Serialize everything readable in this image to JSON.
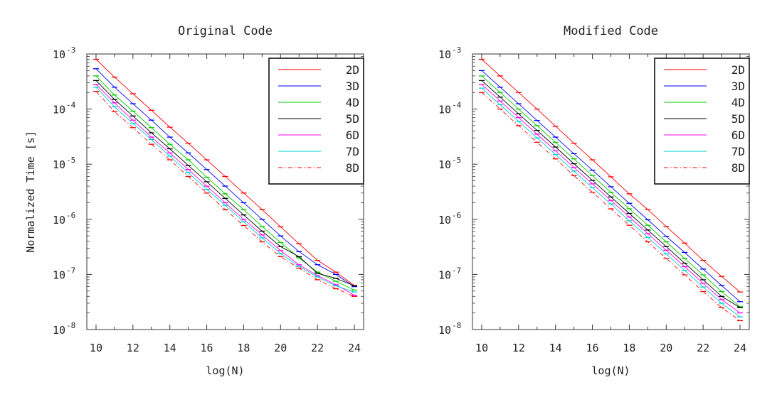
{
  "chart_data": [
    {
      "type": "line",
      "title": "Original Code",
      "xlabel": "log(N)",
      "ylabel": "Normalized Time [s]",
      "xlim": [
        9.5,
        24.5
      ],
      "ylim_exp": [
        -8,
        -3
      ],
      "yscale": "log",
      "x_ticks": [
        "10",
        "12",
        "14",
        "16",
        "18",
        "20",
        "22",
        "24"
      ],
      "y_tick_base": "10",
      "y_ticks_exp": [
        "-8",
        "-7",
        "-6",
        "-5",
        "-4",
        "-3"
      ],
      "legend_position": "top-right",
      "error_bars": true,
      "x": [
        10,
        11,
        12,
        13,
        14,
        15,
        16,
        17,
        18,
        19,
        20,
        21,
        22,
        23,
        24
      ],
      "series": [
        {
          "name": "2D",
          "color": "#ff0000",
          "dash": "solid",
          "values": [
            0.0008,
            0.00038,
            0.00019,
            9.5e-05,
            4.7e-05,
            2.4e-05,
            1.2e-05,
            6e-06,
            3e-06,
            1.5e-06,
            7.3e-07,
            3.6e-07,
            1.8e-07,
            1.1e-07,
            6.3e-08
          ]
        },
        {
          "name": "3D",
          "color": "#0000ff",
          "dash": "solid",
          "values": [
            0.00054,
            0.00025,
            0.000125,
            6.3e-05,
            3.1e-05,
            1.6e-05,
            8e-06,
            4e-06,
            2e-06,
            1e-06,
            5e-07,
            2.6e-07,
            1.5e-07,
            1e-07,
            6e-08
          ]
        },
        {
          "name": "4D",
          "color": "#00cc00",
          "dash": "solid",
          "values": [
            0.0004,
            0.00018,
            9.2e-05,
            4.6e-05,
            2.3e-05,
            1.2e-05,
            5.8e-06,
            2.9e-06,
            1.5e-06,
            7.4e-07,
            3.8e-07,
            2e-07,
            1.1e-07,
            7.5e-08,
            5.2e-08
          ]
        },
        {
          "name": "5D",
          "color": "#000000",
          "dash": "solid",
          "values": [
            0.00033,
            0.00015,
            7.5e-05,
            3.7e-05,
            1.9e-05,
            9.5e-06,
            4.8e-06,
            2.4e-06,
            1.2e-06,
            6.1e-07,
            3.2e-07,
            2.1e-07,
            1.05e-07,
            8.5e-08,
            6.2e-08
          ]
        },
        {
          "name": "6D",
          "color": "#ff00ff",
          "dash": "solid",
          "values": [
            0.00028,
            0.00013,
            6.3e-05,
            3.1e-05,
            1.6e-05,
            8e-06,
            4e-06,
            2e-06,
            1e-06,
            5.2e-07,
            2.7e-07,
            1.5e-07,
            9.5e-08,
            6.5e-08,
            4.2e-08
          ]
        },
        {
          "name": "7D",
          "color": "#00cccc",
          "dash": "solid",
          "values": [
            0.00025,
            0.00011,
            5.5e-05,
            2.8e-05,
            1.4e-05,
            7e-06,
            3.5e-06,
            1.8e-06,
            9e-07,
            4.6e-07,
            2.4e-07,
            1.4e-07,
            9e-08,
            6.2e-08,
            4.8e-08
          ]
        },
        {
          "name": "8D",
          "color": "#ff0000",
          "dash": "dashdot",
          "values": [
            0.00021,
            9e-05,
            4.6e-05,
            2.3e-05,
            1.2e-05,
            6e-06,
            3e-06,
            1.5e-06,
            7.7e-07,
            3.9e-07,
            2.1e-07,
            1.3e-07,
            8e-08,
            5.5e-08,
            4e-08
          ]
        }
      ]
    },
    {
      "type": "line",
      "title": "Modified Code",
      "xlabel": "log(N)",
      "ylabel": "",
      "xlim": [
        9.5,
        24.5
      ],
      "ylim_exp": [
        -8,
        -3
      ],
      "yscale": "log",
      "x_ticks": [
        "10",
        "12",
        "14",
        "16",
        "18",
        "20",
        "22",
        "24"
      ],
      "y_tick_base": "10",
      "y_ticks_exp": [
        "-8",
        "-7",
        "-6",
        "-5",
        "-4",
        "-3"
      ],
      "legend_position": "top-right",
      "error_bars": true,
      "x": [
        10,
        11,
        12,
        13,
        14,
        15,
        16,
        17,
        18,
        19,
        20,
        21,
        22,
        23,
        24
      ],
      "series": [
        {
          "name": "2D",
          "color": "#ff0000",
          "dash": "solid",
          "values": [
            0.0008,
            0.0004,
            0.0002,
            0.0001,
            4.9e-05,
            2.4e-05,
            1.2e-05,
            5.9e-06,
            2.9e-06,
            1.5e-06,
            7.4e-07,
            3.7e-07,
            1.8e-07,
            9.2e-08,
            4.8e-08
          ]
        },
        {
          "name": "3D",
          "color": "#0000ff",
          "dash": "solid",
          "values": [
            0.0005,
            0.00025,
            0.000125,
            6.2e-05,
            3.1e-05,
            1.55e-05,
            7.8e-06,
            3.9e-06,
            1.95e-06,
            9.8e-07,
            4.9e-07,
            2.5e-07,
            1.25e-07,
            6.3e-08,
            3.2e-08
          ]
        },
        {
          "name": "4D",
          "color": "#00cc00",
          "dash": "solid",
          "values": [
            0.0004,
            0.0002,
            0.0001,
            5e-05,
            2.5e-05,
            1.25e-05,
            6.2e-06,
            3.1e-06,
            1.55e-06,
            7.8e-07,
            3.9e-07,
            1.95e-07,
            9.8e-08,
            4.9e-08,
            2.6e-08
          ]
        },
        {
          "name": "5D",
          "color": "#000000",
          "dash": "solid",
          "values": [
            0.00033,
            0.000165,
            8.2e-05,
            4.1e-05,
            2.05e-05,
            1.02e-05,
            5.1e-06,
            2.55e-06,
            1.28e-06,
            6.4e-07,
            3.2e-07,
            1.6e-07,
            8e-08,
            4e-08,
            2.5e-08
          ]
        },
        {
          "name": "6D",
          "color": "#ff00ff",
          "dash": "solid",
          "values": [
            0.00028,
            0.00014,
            7e-05,
            3.5e-05,
            1.75e-05,
            8.7e-06,
            4.4e-06,
            2.2e-06,
            1.1e-06,
            5.5e-07,
            2.75e-07,
            1.38e-07,
            6.9e-08,
            3.5e-08,
            2e-08
          ]
        },
        {
          "name": "7D",
          "color": "#00cccc",
          "dash": "solid",
          "values": [
            0.00024,
            0.00012,
            6e-05,
            3e-05,
            1.5e-05,
            7.5e-06,
            3.75e-06,
            1.9e-06,
            9.4e-07,
            4.7e-07,
            2.35e-07,
            1.18e-07,
            5.9e-08,
            3e-08,
            1.7e-08
          ]
        },
        {
          "name": "8D",
          "color": "#ff0000",
          "dash": "dashdot",
          "values": [
            0.0002,
            0.0001,
            5e-05,
            2.5e-05,
            1.25e-05,
            6.2e-06,
            3.1e-06,
            1.55e-06,
            7.8e-07,
            3.9e-07,
            1.95e-07,
            9.8e-08,
            4.9e-08,
            2.5e-08,
            1.45e-08
          ]
        }
      ]
    }
  ]
}
